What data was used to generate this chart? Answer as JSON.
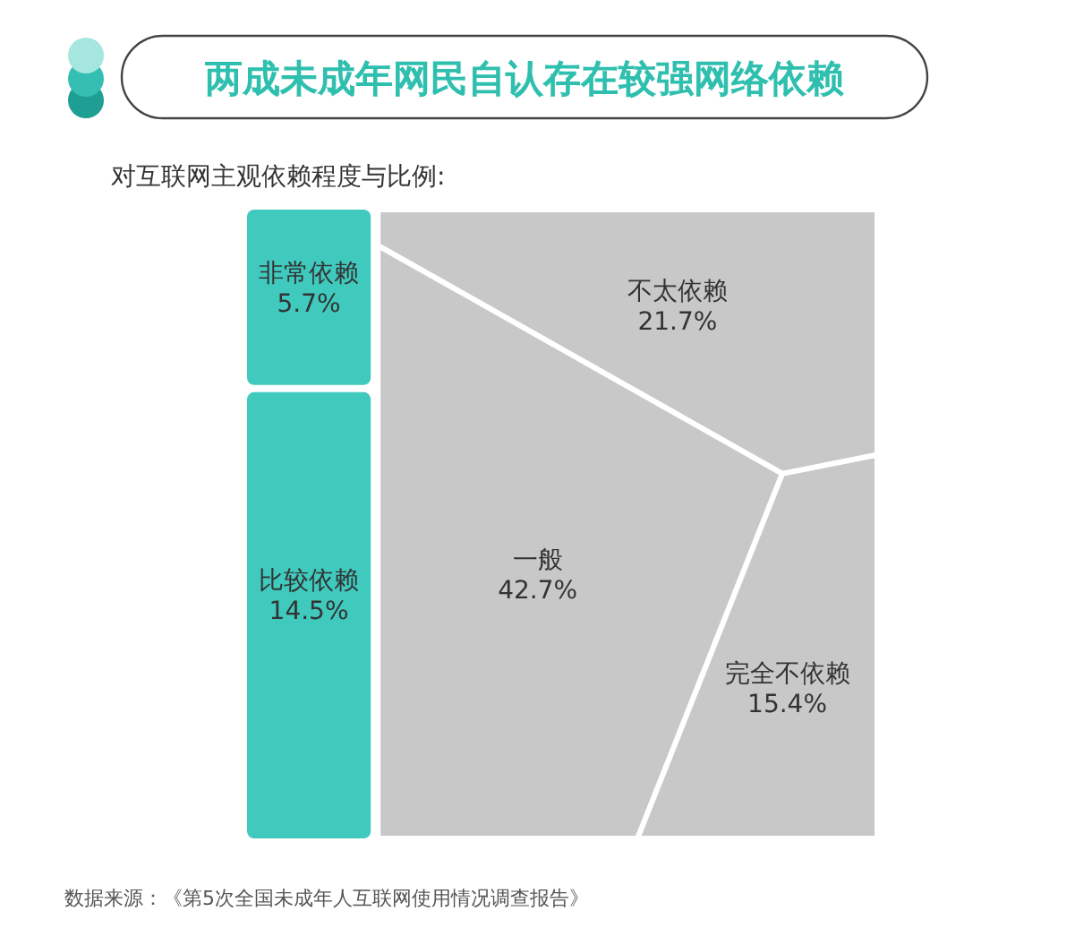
{
  "chart_data": {
    "type": "other",
    "title": "两成未成年网民自认存在较强网络依赖",
    "subtitle": "对互联网主观依赖程度与比例:",
    "categories": [
      "非常依赖",
      "比较依赖",
      "不太依赖",
      "一般",
      "完全不依赖"
    ],
    "values": [
      5.7,
      14.5,
      21.7,
      42.7,
      15.4
    ],
    "value_labels": [
      "5.7%",
      "14.5%",
      "21.7%",
      "42.7%",
      "15.4%"
    ],
    "colors": [
      "#40c9bd",
      "#40c9bd",
      "#c8c8c8",
      "#c8c8c8",
      "#c8c8c8"
    ],
    "annotations": [
      "数据来源：《第5次全国未成年人互联网使用情况调查报告》"
    ]
  }
}
